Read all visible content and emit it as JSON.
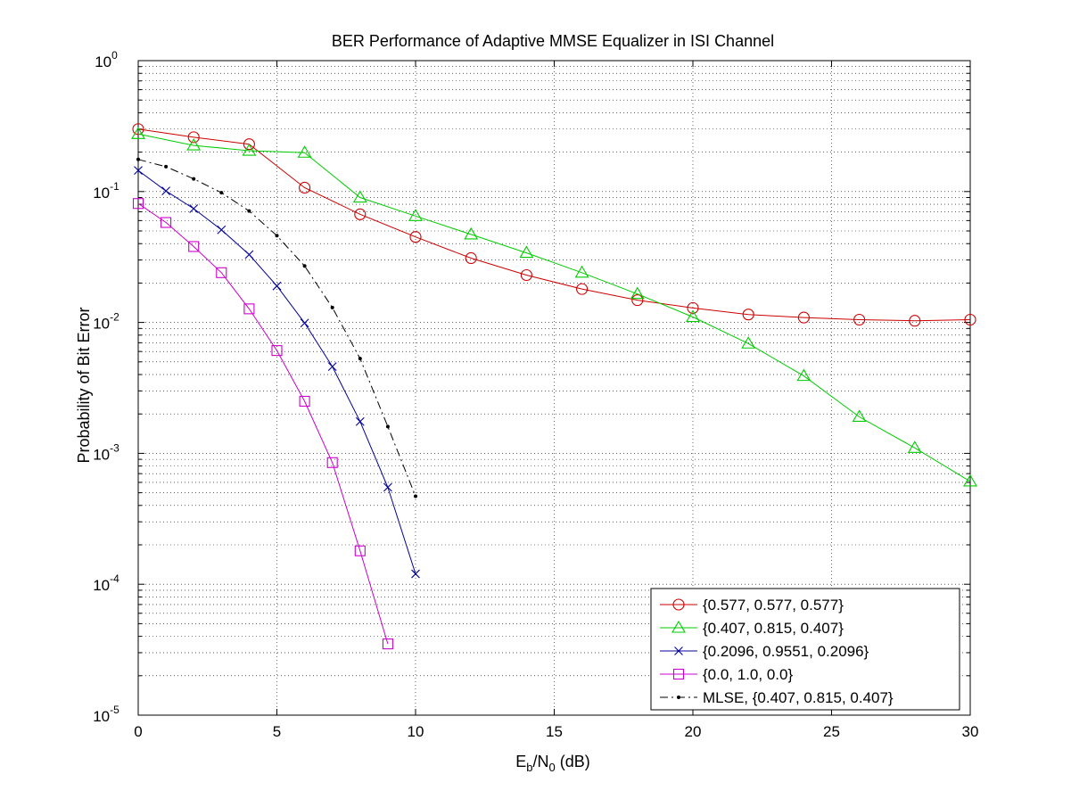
{
  "chart_data": {
    "type": "line",
    "title": "BER Performance of Adaptive MMSE Equalizer in ISI Channel",
    "xlabel": {
      "main": "E",
      "sub1": "b",
      "mid": "/N",
      "sub2": "0",
      "tail": " (dB)"
    },
    "ylabel": "Probability of Bit Error",
    "xlim": [
      0,
      30
    ],
    "ylim_exp": [
      -5,
      0
    ],
    "yscale": "log",
    "grid": true,
    "x_ticks": [
      0,
      5,
      10,
      15,
      20,
      25,
      30
    ],
    "x_tick_labels": [
      "0",
      "5",
      "10",
      "15",
      "20",
      "25",
      "30"
    ],
    "y_tick_exps": [
      0,
      -1,
      -2,
      -3,
      -4,
      -5
    ],
    "y_tick_labels": [
      {
        "base": "10",
        "exp": "0"
      },
      {
        "base": "10",
        "exp": "-1"
      },
      {
        "base": "10",
        "exp": "-2"
      },
      {
        "base": "10",
        "exp": "-3"
      },
      {
        "base": "10",
        "exp": "-4"
      },
      {
        "base": "10",
        "exp": "-5"
      }
    ],
    "legend_position": "bottom-right",
    "series": [
      {
        "name": "{0.577, 0.577, 0.577}",
        "color": "#cc0000",
        "marker": "circle",
        "dash": "solid",
        "x": [
          0,
          2,
          4,
          6,
          8,
          10,
          12,
          14,
          16,
          18,
          20,
          22,
          24,
          26,
          28,
          30
        ],
        "y": [
          0.3,
          0.26,
          0.23,
          0.107,
          0.067,
          0.045,
          0.031,
          0.023,
          0.018,
          0.0148,
          0.0129,
          0.0115,
          0.0109,
          0.0105,
          0.0103,
          0.0105
        ]
      },
      {
        "name": "{0.407, 0.815, 0.407}",
        "color": "#00cc00",
        "marker": "triangle",
        "dash": "solid",
        "x": [
          0,
          2,
          4,
          6,
          8,
          10,
          12,
          14,
          16,
          18,
          20,
          22,
          24,
          26,
          28,
          30
        ],
        "y": [
          0.275,
          0.225,
          0.205,
          0.198,
          0.09,
          0.065,
          0.047,
          0.034,
          0.024,
          0.0165,
          0.011,
          0.0069,
          0.0039,
          0.0019,
          0.0011,
          0.00061
        ]
      },
      {
        "name": "{0.2096, 0.9551, 0.2096}",
        "color": "#000099",
        "marker": "x",
        "dash": "solid",
        "x": [
          0,
          1,
          2,
          3,
          4,
          5,
          6,
          7,
          8,
          9,
          10
        ],
        "y": [
          0.145,
          0.101,
          0.074,
          0.051,
          0.033,
          0.019,
          0.0099,
          0.0046,
          0.00175,
          0.00055,
          0.00012
        ]
      },
      {
        "name": "{0.0, 1.0, 0.0}",
        "color": "#cc00cc",
        "marker": "square",
        "dash": "solid",
        "x": [
          0,
          1,
          2,
          3,
          4,
          5,
          6,
          7,
          8,
          9
        ],
        "y": [
          0.081,
          0.058,
          0.038,
          0.024,
          0.0127,
          0.0061,
          0.0025,
          0.00085,
          0.00018,
          3.5e-05
        ]
      },
      {
        "name": "MLSE, {0.407, 0.815, 0.407}",
        "color": "#000000",
        "marker": "dot",
        "dash": "dashdot",
        "x": [
          0,
          1,
          2,
          3,
          4,
          5,
          6,
          7,
          8,
          9,
          10
        ],
        "y": [
          0.176,
          0.155,
          0.125,
          0.098,
          0.071,
          0.046,
          0.027,
          0.013,
          0.0053,
          0.0016,
          0.00047
        ]
      }
    ]
  }
}
